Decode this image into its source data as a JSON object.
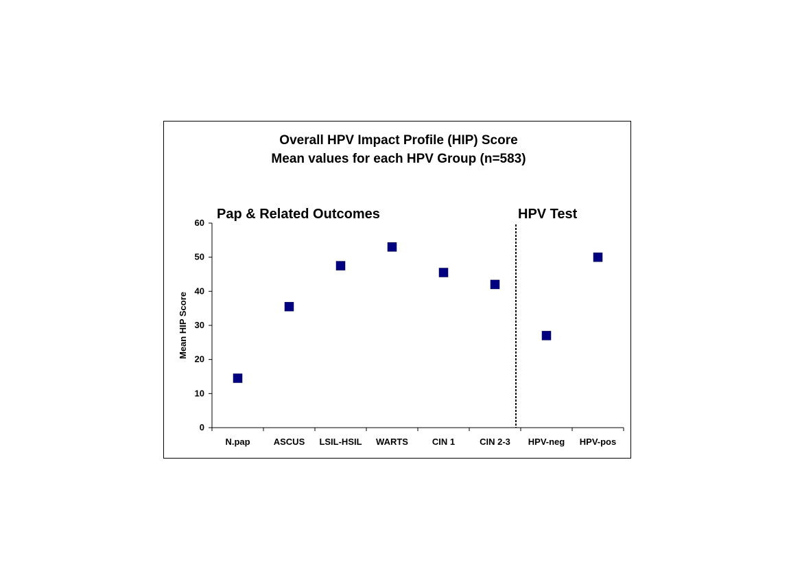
{
  "chart_data": {
    "type": "scatter",
    "title": "Overall HPV Impact Profile (HIP) Score",
    "subtitle": "Mean values for each HPV Group (n=583)",
    "xlabel": "",
    "ylabel": "Mean HIP Score",
    "categories": [
      "N.pap",
      "ASCUS",
      "LSIL-HSIL",
      "WARTS",
      "CIN 1",
      "CIN 2-3",
      "HPV-neg",
      "HPV-pos"
    ],
    "series": [
      {
        "values": [
          14.5,
          35.5,
          47.5,
          53,
          45.5,
          42,
          27,
          50
        ]
      }
    ],
    "ylim": [
      0,
      60
    ],
    "yticks": [
      0,
      10,
      20,
      30,
      40,
      50,
      60
    ],
    "grid": false,
    "marker_color": "#000080",
    "sections": [
      {
        "label": "Pap & Related Outcomes",
        "start_index": 0
      },
      {
        "label": "HPV Test",
        "start_index": 6
      }
    ],
    "divider_after_index": 5
  }
}
